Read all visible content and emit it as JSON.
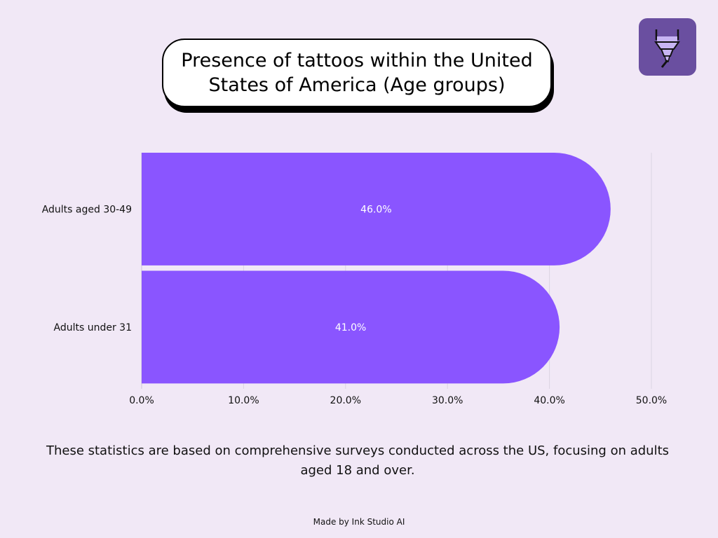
{
  "title": "Presence of tattoos within the United States of America (Age groups)",
  "caption": "These statistics are based on comprehensive surveys conducted across the US, focusing on adults aged 18 and over.",
  "footer": "Made by Ink Studio AI",
  "logo": {
    "icon": "tattoo-machine-icon"
  },
  "colors": {
    "bar": "#8a55ff",
    "background": "#f1e8f6",
    "grid": "#dcd3e2",
    "logo_bg": "#6a4fa0"
  },
  "chart_data": {
    "type": "bar",
    "orientation": "horizontal",
    "categories": [
      "Adults aged 30-49",
      "Adults under 31"
    ],
    "values": [
      46.0,
      41.0
    ],
    "value_labels": [
      "46.0%",
      "41.0%"
    ],
    "xlim": [
      0,
      50
    ],
    "x_ticks": [
      0,
      10,
      20,
      30,
      40,
      50
    ],
    "x_tick_labels": [
      "0.0%",
      "10.0%",
      "20.0%",
      "30.0%",
      "40.0%",
      "50.0%"
    ],
    "grid": true
  }
}
